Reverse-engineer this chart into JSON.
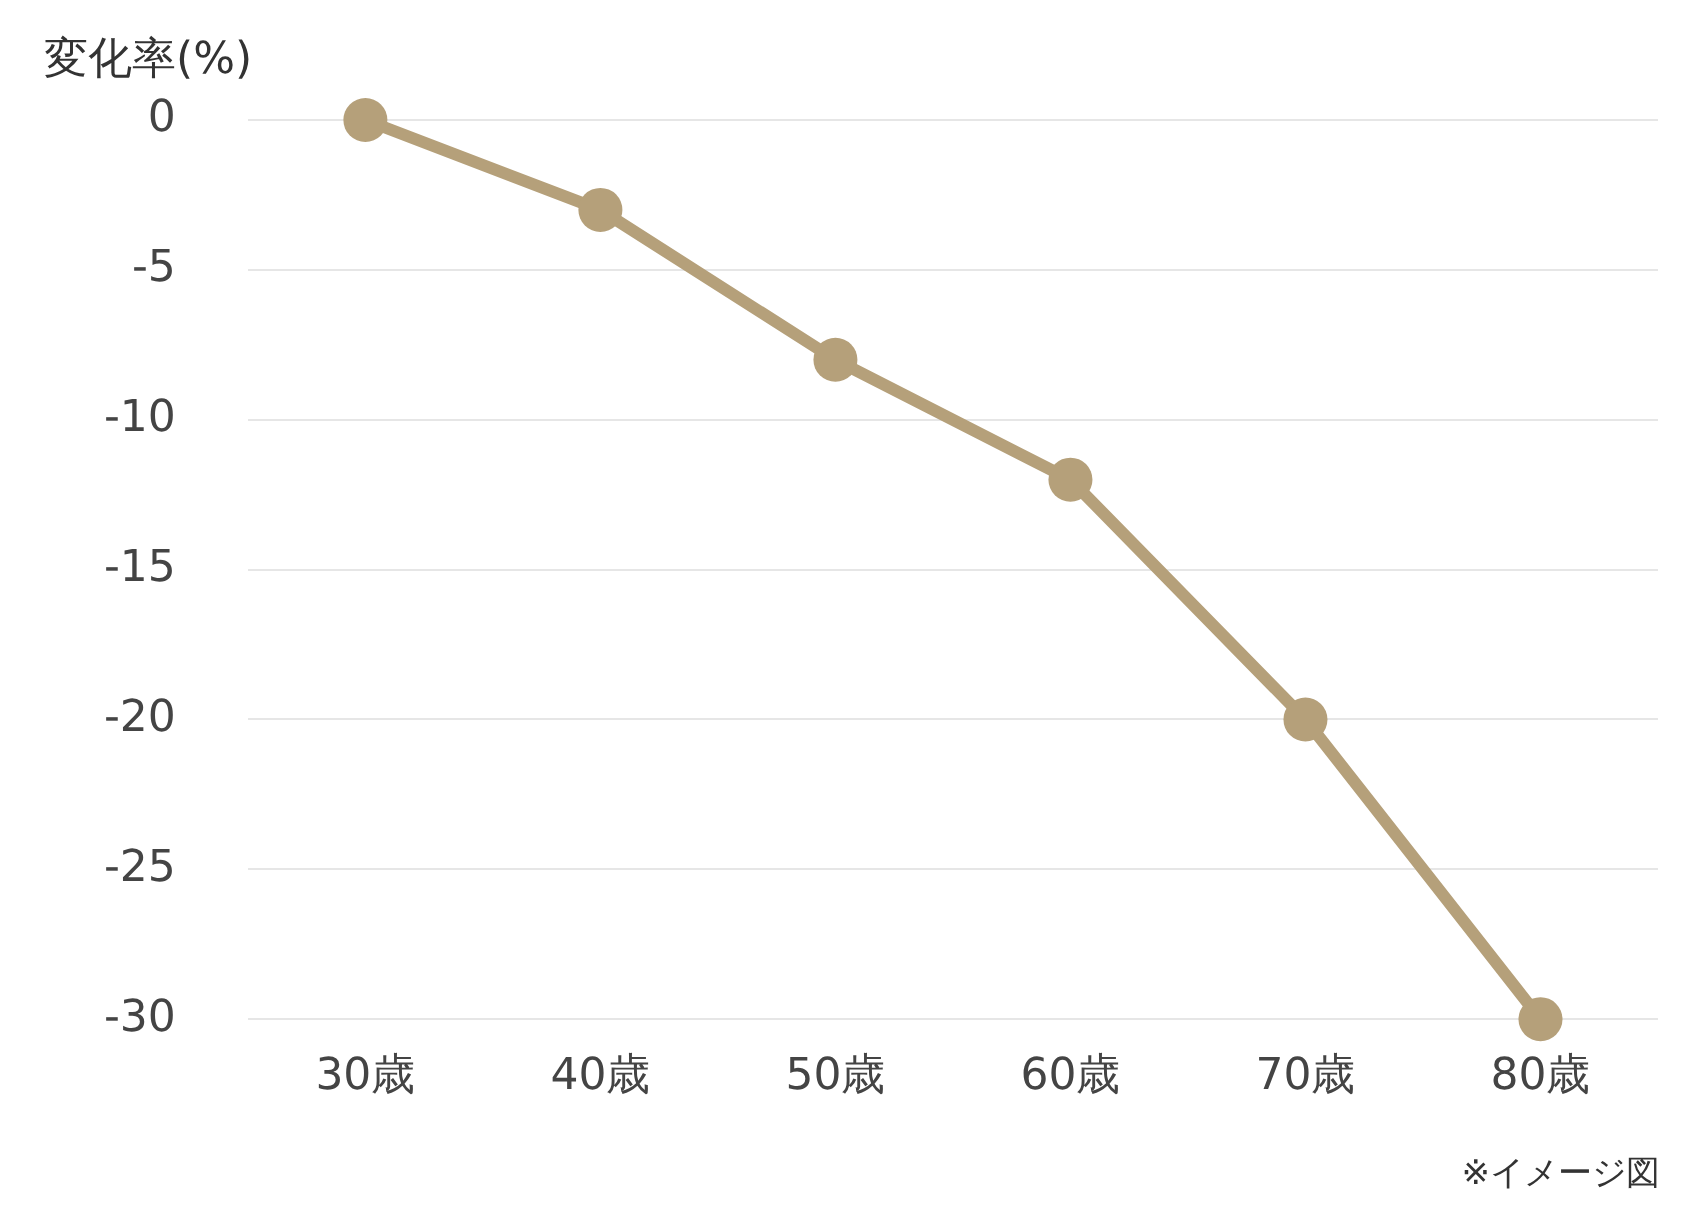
{
  "chart_data": {
    "type": "line",
    "ylabel": "変化率(%)",
    "categories": [
      "30歳",
      "40歳",
      "50歳",
      "60歳",
      "70歳",
      "80歳"
    ],
    "series": [
      {
        "color": "#b5a07a",
        "values": [
          0,
          -3,
          -8,
          -12,
          -20,
          -30
        ]
      }
    ],
    "ylim": [
      -30,
      0
    ],
    "yticks": [
      -30,
      -25,
      -20,
      -15,
      -10,
      -5,
      0
    ],
    "grid": "y",
    "legend": false,
    "marker": "circle",
    "line_style": "solid",
    "annotations": [
      "※イメージ図"
    ]
  }
}
